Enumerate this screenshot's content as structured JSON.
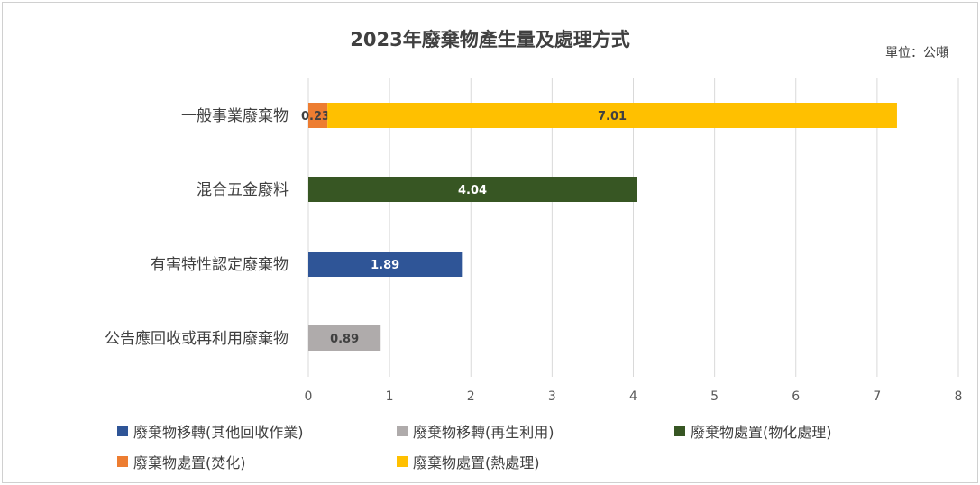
{
  "chart_data": {
    "type": "bar",
    "orientation": "horizontal",
    "stacked": true,
    "title": "2023年廢棄物產生量及處理方式",
    "unit_label": "單位：公噸",
    "categories": [
      "一般事業廢棄物",
      "混合五金廢料",
      "有害特性認定廢棄物",
      "公告應回收或再利用廢棄物"
    ],
    "xlim": [
      0,
      8
    ],
    "xticks": [
      "0",
      "1",
      "2",
      "3",
      "4",
      "5",
      "6",
      "7",
      "8"
    ],
    "grid": true,
    "legend_position": "bottom",
    "series": [
      {
        "name": "廢棄物移轉(其他回收作業)",
        "color": "#2f5597",
        "values": [
          0,
          0,
          1.89,
          0
        ],
        "labels": [
          "",
          "",
          "1.89",
          ""
        ]
      },
      {
        "name": "廢棄物移轉(再生利用)",
        "color": "#afabab",
        "values": [
          0,
          0,
          0,
          0.89
        ],
        "labels": [
          "",
          "",
          "",
          "0.89"
        ]
      },
      {
        "name": "廢棄物處置(物化處理)",
        "color": "#375623",
        "values": [
          0,
          4.04,
          0,
          0
        ],
        "labels": [
          "",
          "4.04",
          "",
          ""
        ]
      },
      {
        "name": "廢棄物處置(焚化)",
        "color": "#ed7d31",
        "values": [
          0.235,
          0,
          0,
          0
        ],
        "labels": [
          "0.235",
          "",
          "",
          ""
        ]
      },
      {
        "name": "廢棄物處置(熱處理)",
        "color": "#ffc000",
        "values": [
          7.01,
          0,
          0,
          0
        ],
        "labels": [
          "7.01",
          "",
          "",
          ""
        ]
      }
    ]
  }
}
